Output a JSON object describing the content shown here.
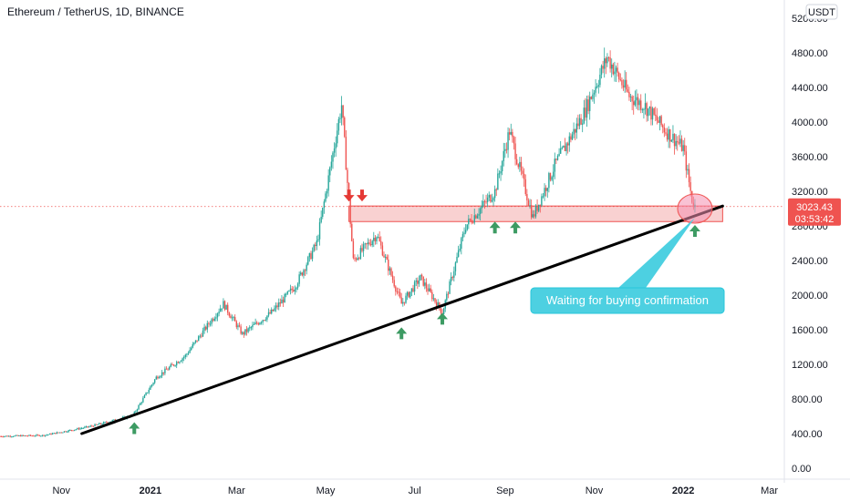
{
  "header": {
    "title": "Ethereum / TetherUS, 1D, BINANCE",
    "currency": "USDT"
  },
  "price_label": {
    "price": "3023.43",
    "countdown": "03:53:42"
  },
  "annotation": {
    "text": "Waiting for buying confirmation"
  },
  "colors": {
    "up": "#26a69a",
    "down": "#ef5350",
    "trendline": "#000000",
    "zone_fill": "#f7c2c2",
    "zone_border": "#ef5350",
    "note_bg": "#4dd0e1",
    "arrow_up": "#3d9b63",
    "arrow_down": "#e53935"
  },
  "chart_data": {
    "type": "candlestick",
    "title": "Ethereum / TetherUS, 1D, BINANCE",
    "y_unit": "USDT",
    "ylim": [
      0,
      5200
    ],
    "y_ticks": [
      "5200.00",
      "4800.00",
      "4400.00",
      "4000.00",
      "3600.00",
      "3200.00",
      "2800.00",
      "2400.00",
      "2000.00",
      "1600.00",
      "1200.00",
      "800.00",
      "400.00",
      "0.00"
    ],
    "y_tick_values": [
      5200,
      4800,
      4400,
      4000,
      3600,
      3200,
      2800,
      2400,
      2000,
      1600,
      1200,
      800,
      400,
      0
    ],
    "x_ticks": [
      "Nov",
      "2021",
      "Mar",
      "May",
      "Jul",
      "Sep",
      "Nov",
      "2022",
      "Mar"
    ],
    "x_tick_dates": [
      "2020-11-01",
      "2021-01-01",
      "2021-03-01",
      "2021-05-01",
      "2021-07-01",
      "2021-09-01",
      "2021-11-01",
      "2022-01-01",
      "2022-03-01"
    ],
    "x_range": [
      "2020-09-20",
      "2022-03-10"
    ],
    "last_price": 3023.43,
    "close_path": [
      {
        "date": "2020-09-20",
        "close": 370
      },
      {
        "date": "2020-10-20",
        "close": 380
      },
      {
        "date": "2020-11-20",
        "close": 480
      },
      {
        "date": "2020-12-20",
        "close": 610
      },
      {
        "date": "2021-01-05",
        "close": 1050
      },
      {
        "date": "2021-01-25",
        "close": 1300
      },
      {
        "date": "2021-02-20",
        "close": 1900
      },
      {
        "date": "2021-03-05",
        "close": 1550
      },
      {
        "date": "2021-03-25",
        "close": 1800
      },
      {
        "date": "2021-04-10",
        "close": 2100
      },
      {
        "date": "2021-04-25",
        "close": 2600
      },
      {
        "date": "2021-05-12",
        "close": 4200
      },
      {
        "date": "2021-05-20",
        "close": 2400
      },
      {
        "date": "2021-06-05",
        "close": 2700
      },
      {
        "date": "2021-06-22",
        "close": 1900
      },
      {
        "date": "2021-07-05",
        "close": 2200
      },
      {
        "date": "2021-07-20",
        "close": 1800
      },
      {
        "date": "2021-08-05",
        "close": 2800
      },
      {
        "date": "2021-08-25",
        "close": 3200
      },
      {
        "date": "2021-09-04",
        "close": 3900
      },
      {
        "date": "2021-09-20",
        "close": 2900
      },
      {
        "date": "2021-10-05",
        "close": 3500
      },
      {
        "date": "2021-10-25",
        "close": 4100
      },
      {
        "date": "2021-11-10",
        "close": 4750
      },
      {
        "date": "2021-11-25",
        "close": 4300
      },
      {
        "date": "2021-12-05",
        "close": 4200
      },
      {
        "date": "2021-12-20",
        "close": 3900
      },
      {
        "date": "2022-01-01",
        "close": 3700
      },
      {
        "date": "2022-01-07",
        "close": 3100
      },
      {
        "date": "2022-01-09",
        "close": 3023.43
      }
    ],
    "support_zone": {
      "low": 2850,
      "high": 3030,
      "start": "2021-05-17",
      "end": "2022-01-28"
    },
    "trendline": [
      {
        "date": "2020-11-15",
        "price": 400
      },
      {
        "date": "2022-01-28",
        "price": 3030
      }
    ],
    "up_arrow_dates": [
      "2020-12-21",
      "2021-06-22",
      "2021-07-20",
      "2021-08-25",
      "2021-09-08",
      "2022-01-09"
    ],
    "down_arrow_dates": [
      "2021-05-17",
      "2021-05-26"
    ],
    "target_circle": {
      "date": "2022-01-09",
      "price": 3000
    }
  }
}
